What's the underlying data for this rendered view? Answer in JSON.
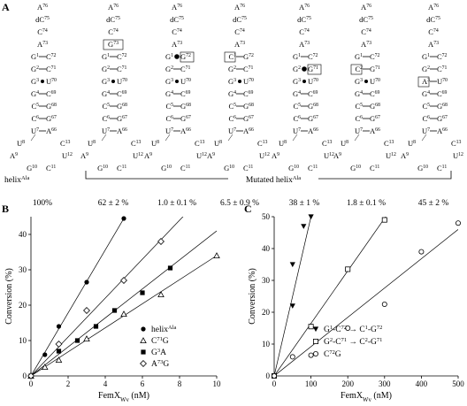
{
  "panel_labels": {
    "a": "A",
    "b": "B",
    "c": "C"
  },
  "panel_a": {
    "helix_label_base": "helix",
    "helix_label_sup": "Ala",
    "mutated_label_base": "Mutated helix",
    "mutated_label_sup": "Ala",
    "percentages": [
      "100%",
      "62 ± 2 %",
      "1.0 ± 0.1 %",
      "6.5 ± 0.9 %",
      "38 ± 1 %",
      "1.8 ± 0.1 %",
      "45 ± 2 %"
    ],
    "helices": [
      {
        "box": null,
        "top": [
          [
            "A",
            "76"
          ],
          [
            "dC",
            "75"
          ],
          [
            "C",
            "74"
          ],
          [
            "A",
            "73"
          ]
        ],
        "pairs": [
          {
            "l": [
              "G",
              "1"
            ],
            "b": "dash",
            "r": [
              "C",
              "72"
            ]
          },
          {
            "l": [
              "G",
              "2"
            ],
            "b": "dash",
            "r": [
              "C",
              "71"
            ]
          },
          {
            "l": [
              "G",
              "3"
            ],
            "b": "dot",
            "r": [
              "U",
              "70"
            ]
          },
          {
            "l": [
              "G",
              "4"
            ],
            "b": "dash",
            "r": [
              "C",
              "69"
            ]
          },
          {
            "l": [
              "C",
              "5"
            ],
            "b": "dash",
            "r": [
              "G",
              "68"
            ]
          },
          {
            "l": [
              "C",
              "6"
            ],
            "b": "dash",
            "r": [
              "G",
              "67"
            ]
          },
          {
            "l": [
              "U",
              "7"
            ],
            "b": "dash",
            "r": [
              "A",
              "66"
            ]
          }
        ],
        "loop": [
          [
            "U",
            "8"
          ],
          [
            "C",
            "13"
          ],
          [
            "A",
            "9"
          ],
          [
            "U",
            "12"
          ],
          [
            "G",
            "10"
          ],
          [
            "C",
            "11"
          ]
        ]
      },
      {
        "box": "t3",
        "top": [
          [
            "A",
            "76"
          ],
          [
            "dC",
            "75"
          ],
          [
            "C",
            "74"
          ],
          [
            "G",
            "73"
          ]
        ],
        "pairs": [
          {
            "l": [
              "G",
              "1"
            ],
            "b": "dash",
            "r": [
              "C",
              "72"
            ]
          },
          {
            "l": [
              "G",
              "2"
            ],
            "b": "dash",
            "r": [
              "C",
              "71"
            ]
          },
          {
            "l": [
              "G",
              "3"
            ],
            "b": "dot",
            "r": [
              "U",
              "70"
            ]
          },
          {
            "l": [
              "G",
              "4"
            ],
            "b": "dash",
            "r": [
              "C",
              "69"
            ]
          },
          {
            "l": [
              "C",
              "5"
            ],
            "b": "dash",
            "r": [
              "G",
              "68"
            ]
          },
          {
            "l": [
              "C",
              "6"
            ],
            "b": "dash",
            "r": [
              "G",
              "67"
            ]
          },
          {
            "l": [
              "U",
              "7"
            ],
            "b": "dash",
            "r": [
              "A",
              "66"
            ]
          }
        ],
        "loop": [
          [
            "U",
            "8"
          ],
          [
            "C",
            "13"
          ],
          [
            "A",
            "9"
          ],
          [
            "U",
            "12"
          ],
          [
            "G",
            "10"
          ],
          [
            "C",
            "11"
          ]
        ]
      },
      {
        "box": "p0r",
        "top": [
          [
            "A",
            "76"
          ],
          [
            "dC",
            "75"
          ],
          [
            "C",
            "74"
          ],
          [
            "A",
            "73"
          ]
        ],
        "pairs": [
          {
            "l": [
              "G",
              "1"
            ],
            "b": "bigdot",
            "r": [
              "G",
              "72"
            ]
          },
          {
            "l": [
              "G",
              "2"
            ],
            "b": "dash",
            "r": [
              "C",
              "71"
            ]
          },
          {
            "l": [
              "G",
              "3"
            ],
            "b": "dot",
            "r": [
              "U",
              "70"
            ]
          },
          {
            "l": [
              "G",
              "4"
            ],
            "b": "dash",
            "r": [
              "C",
              "69"
            ]
          },
          {
            "l": [
              "C",
              "5"
            ],
            "b": "dash",
            "r": [
              "G",
              "68"
            ]
          },
          {
            "l": [
              "C",
              "6"
            ],
            "b": "dash",
            "r": [
              "G",
              "67"
            ]
          },
          {
            "l": [
              "U",
              "7"
            ],
            "b": "dash",
            "r": [
              "A",
              "66"
            ]
          }
        ],
        "loop": [
          [
            "U",
            "8"
          ],
          [
            "C",
            "13"
          ],
          [
            "A",
            "9"
          ],
          [
            "U",
            "12"
          ],
          [
            "G",
            "10"
          ],
          [
            "C",
            "11"
          ]
        ]
      },
      {
        "box": "p0",
        "top": [
          [
            "A",
            "76"
          ],
          [
            "dC",
            "75"
          ],
          [
            "C",
            "74"
          ],
          [
            "A",
            "73"
          ]
        ],
        "pairs": [
          {
            "l": [
              "C",
              "1"
            ],
            "b": "dash",
            "r": [
              "G",
              "72"
            ]
          },
          {
            "l": [
              "G",
              "2"
            ],
            "b": "dash",
            "r": [
              "C",
              "71"
            ]
          },
          {
            "l": [
              "G",
              "3"
            ],
            "b": "dot",
            "r": [
              "U",
              "70"
            ]
          },
          {
            "l": [
              "G",
              "4"
            ],
            "b": "dash",
            "r": [
              "C",
              "69"
            ]
          },
          {
            "l": [
              "C",
              "5"
            ],
            "b": "dash",
            "r": [
              "G",
              "68"
            ]
          },
          {
            "l": [
              "C",
              "6"
            ],
            "b": "dash",
            "r": [
              "G",
              "67"
            ]
          },
          {
            "l": [
              "U",
              "7"
            ],
            "b": "dash",
            "r": [
              "A",
              "66"
            ]
          }
        ],
        "loop": [
          [
            "U",
            "8"
          ],
          [
            "C",
            "13"
          ],
          [
            "A",
            "9"
          ],
          [
            "U",
            "12"
          ],
          [
            "G",
            "10"
          ],
          [
            "C",
            "11"
          ]
        ]
      },
      {
        "box": "p1r",
        "top": [
          [
            "A",
            "76"
          ],
          [
            "dC",
            "75"
          ],
          [
            "C",
            "74"
          ],
          [
            "A",
            "73"
          ]
        ],
        "pairs": [
          {
            "l": [
              "G",
              "1"
            ],
            "b": "dash",
            "r": [
              "C",
              "72"
            ]
          },
          {
            "l": [
              "G",
              "2"
            ],
            "b": "bigdot",
            "r": [
              "G",
              "71"
            ]
          },
          {
            "l": [
              "G",
              "3"
            ],
            "b": "dot",
            "r": [
              "U",
              "70"
            ]
          },
          {
            "l": [
              "G",
              "4"
            ],
            "b": "dash",
            "r": [
              "C",
              "69"
            ]
          },
          {
            "l": [
              "C",
              "5"
            ],
            "b": "dash",
            "r": [
              "G",
              "68"
            ]
          },
          {
            "l": [
              "C",
              "6"
            ],
            "b": "dash",
            "r": [
              "G",
              "67"
            ]
          },
          {
            "l": [
              "U",
              "7"
            ],
            "b": "dash",
            "r": [
              "A",
              "66"
            ]
          }
        ],
        "loop": [
          [
            "U",
            "8"
          ],
          [
            "C",
            "13"
          ],
          [
            "A",
            "9"
          ],
          [
            "U",
            "12"
          ],
          [
            "G",
            "10"
          ],
          [
            "C",
            "11"
          ]
        ]
      },
      {
        "box": "p1",
        "top": [
          [
            "A",
            "76"
          ],
          [
            "dC",
            "75"
          ],
          [
            "C",
            "74"
          ],
          [
            "A",
            "73"
          ]
        ],
        "pairs": [
          {
            "l": [
              "G",
              "1"
            ],
            "b": "dash",
            "r": [
              "C",
              "72"
            ]
          },
          {
            "l": [
              "C",
              "2"
            ],
            "b": "dash",
            "r": [
              "G",
              "71"
            ]
          },
          {
            "l": [
              "G",
              "3"
            ],
            "b": "dot",
            "r": [
              "U",
              "70"
            ]
          },
          {
            "l": [
              "G",
              "4"
            ],
            "b": "dash",
            "r": [
              "C",
              "69"
            ]
          },
          {
            "l": [
              "C",
              "5"
            ],
            "b": "dash",
            "r": [
              "G",
              "68"
            ]
          },
          {
            "l": [
              "C",
              "6"
            ],
            "b": "dash",
            "r": [
              "G",
              "67"
            ]
          },
          {
            "l": [
              "U",
              "7"
            ],
            "b": "dash",
            "r": [
              "A",
              "66"
            ]
          }
        ],
        "loop": [
          [
            "U",
            "8"
          ],
          [
            "C",
            "13"
          ],
          [
            "A",
            "9"
          ],
          [
            "U",
            "12"
          ],
          [
            "G",
            "10"
          ],
          [
            "C",
            "11"
          ]
        ]
      },
      {
        "box": "p2",
        "top": [
          [
            "A",
            "76"
          ],
          [
            "dC",
            "75"
          ],
          [
            "C",
            "74"
          ],
          [
            "A",
            "73"
          ]
        ],
        "pairs": [
          {
            "l": [
              "G",
              "1"
            ],
            "b": "dash",
            "r": [
              "C",
              "72"
            ]
          },
          {
            "l": [
              "G",
              "2"
            ],
            "b": "dash",
            "r": [
              "C",
              "71"
            ]
          },
          {
            "l": [
              "A",
              "3"
            ],
            "b": "dash",
            "r": [
              "U",
              "70"
            ]
          },
          {
            "l": [
              "G",
              "4"
            ],
            "b": "dash",
            "r": [
              "C",
              "69"
            ]
          },
          {
            "l": [
              "C",
              "5"
            ],
            "b": "dash",
            "r": [
              "G",
              "68"
            ]
          },
          {
            "l": [
              "C",
              "6"
            ],
            "b": "dash",
            "r": [
              "G",
              "67"
            ]
          },
          {
            "l": [
              "U",
              "7"
            ],
            "b": "dash",
            "r": [
              "A",
              "66"
            ]
          }
        ],
        "loop": [
          [
            "U",
            "8"
          ],
          [
            "C",
            "13"
          ],
          [
            "A",
            "9"
          ],
          [
            "U",
            "12"
          ],
          [
            "G",
            "10"
          ],
          [
            "C",
            "11"
          ]
        ]
      }
    ]
  },
  "chart_data": [
    {
      "type": "scatter",
      "panel": "B",
      "ylabel": "Conversion (%)",
      "xlabel_base": "FemX",
      "xlabel_sub": "Wv",
      "xlabel_unit": " (nM)",
      "xlim": [
        0,
        10
      ],
      "ylim": [
        0,
        45
      ],
      "xticks": [
        0,
        2,
        4,
        6,
        8,
        10
      ],
      "yticks": [
        0,
        10,
        20,
        30,
        40
      ],
      "legend_position": "bottom-right",
      "series": [
        {
          "name_base": "helix",
          "name_sup": "Ala",
          "marker": "filled-circle",
          "slope": 8.9,
          "x": [
            0,
            0.75,
            1.5,
            3.0,
            5.0
          ],
          "y": [
            0,
            6,
            14,
            26.5,
            44.5
          ]
        },
        {
          "name_base": "C",
          "name_sup": "71",
          "name_tail": "G",
          "marker": "open-triangle",
          "slope": 3.4,
          "x": [
            0,
            0.75,
            1.5,
            3.0,
            5.0,
            7.0,
            10.0
          ],
          "y": [
            0,
            2.5,
            4.5,
            10.5,
            17.5,
            23,
            34
          ]
        },
        {
          "name_base": "G",
          "name_sup": "3",
          "name_tail": "A",
          "marker": "filled-square",
          "slope": 4.1,
          "x": [
            0,
            1.5,
            2.5,
            3.5,
            4.5,
            6.0,
            7.5
          ],
          "y": [
            0,
            7,
            10,
            14,
            18.5,
            23.5,
            30.5
          ]
        },
        {
          "name_base": "A",
          "name_sup": "73",
          "name_tail": "G",
          "marker": "open-diamond",
          "slope": 5.5,
          "x": [
            0,
            1.5,
            3.0,
            5.0,
            7.0
          ],
          "y": [
            0,
            9,
            18.5,
            27,
            38
          ]
        }
      ]
    },
    {
      "type": "scatter",
      "panel": "C",
      "ylabel": "Conversion (%)",
      "xlabel_base": "FemX",
      "xlabel_sub": "Wv",
      "xlabel_unit": " (nM)",
      "xlim": [
        0,
        500
      ],
      "ylim": [
        0,
        50
      ],
      "xticks": [
        0,
        100,
        200,
        300,
        400,
        500
      ],
      "yticks": [
        0,
        10,
        20,
        30,
        40,
        50
      ],
      "legend_position": "bottom-right",
      "series": [
        {
          "legend": [
            [
              "G",
              "1"
            ],
            [
              "-C",
              "72"
            ],
            [
              " → C",
              "1"
            ],
            [
              "-G",
              "72"
            ]
          ],
          "marker": "filled-triangle-down",
          "slope": 0.5,
          "x": [
            0,
            50,
            50,
            80,
            100
          ],
          "y": [
            0,
            22,
            35,
            47,
            50
          ]
        },
        {
          "legend": [
            [
              "G",
              "2"
            ],
            [
              "-C",
              "71"
            ],
            [
              " → C",
              "2"
            ],
            [
              "-G",
              "71"
            ]
          ],
          "marker": "open-square",
          "slope": 0.165,
          "x": [
            0,
            100,
            200,
            300
          ],
          "y": [
            0,
            15.5,
            33.5,
            49
          ]
        },
        {
          "legend": [
            [
              "C",
              "72"
            ],
            [
              "G",
              ""
            ]
          ],
          "marker": "open-circle",
          "slope": 0.092,
          "x": [
            0,
            50,
            100,
            200,
            300,
            400,
            500
          ],
          "y": [
            0,
            6,
            6.5,
            15,
            22.5,
            39,
            48
          ]
        }
      ]
    }
  ]
}
